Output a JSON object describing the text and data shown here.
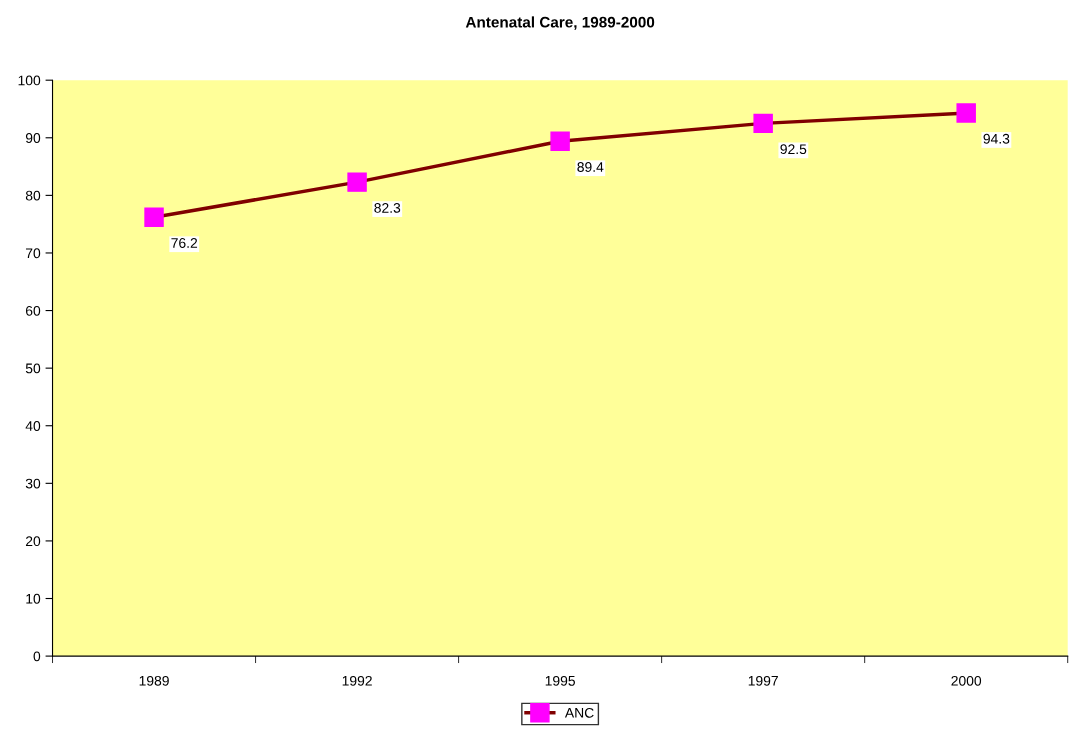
{
  "chart_data": {
    "type": "line",
    "title": "Antenatal Care, 1989-2000",
    "categories": [
      "1989",
      "1992",
      "1995",
      "1997",
      "2000"
    ],
    "series": [
      {
        "name": "ANC",
        "color": "#800000",
        "values": [
          76.2,
          82.3,
          89.4,
          92.5,
          94.3
        ]
      }
    ],
    "ylim": [
      0,
      100
    ],
    "yticks": [
      0,
      10,
      20,
      30,
      40,
      50,
      60,
      70,
      80,
      90,
      100
    ],
    "marker": "square",
    "line_style": "solid",
    "data_labels": true,
    "grid": false,
    "legend": "bottom"
  }
}
